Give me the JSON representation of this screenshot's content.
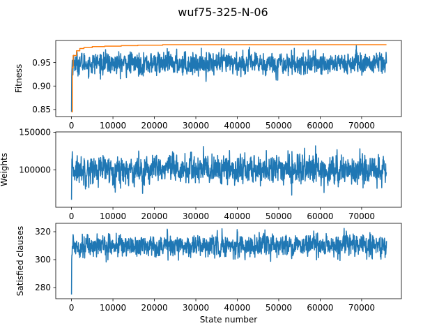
{
  "figure": {
    "title": "wuf75-325-N-06"
  },
  "chart_data": [
    {
      "type": "line",
      "ylabel": "Fitness",
      "xlabel": "",
      "xlim": [
        -3800,
        79600
      ],
      "ylim": [
        0.835,
        0.997
      ],
      "xticks": [
        0,
        10000,
        20000,
        30000,
        40000,
        50000,
        60000,
        70000
      ],
      "yticks": [
        0.85,
        0.9,
        0.95
      ],
      "ytick_labels": [
        "0.85",
        "0.90",
        "0.95"
      ],
      "noise": {
        "start": 0.845,
        "min": 0.887,
        "max": 0.99,
        "mean": 0.948,
        "std": 0.016,
        "n": 76000
      },
      "series": [
        {
          "color": "#1f77b4",
          "kind": "noisy"
        },
        {
          "color": "#ff7f0e",
          "kind": "step",
          "x": [
            0,
            200,
            400,
            1200,
            2000,
            3000,
            5000,
            8000,
            12000,
            16000,
            22000,
            76000
          ],
          "y": [
            0.845,
            0.94,
            0.965,
            0.975,
            0.98,
            0.982,
            0.984,
            0.985,
            0.986,
            0.987,
            0.988,
            0.988
          ]
        }
      ]
    },
    {
      "type": "line",
      "ylabel": "Weights",
      "xlabel": "",
      "xlim": [
        -3800,
        79600
      ],
      "ylim": [
        50000,
        150500
      ],
      "xticks": [
        0,
        10000,
        20000,
        30000,
        40000,
        50000,
        60000,
        70000
      ],
      "yticks": [
        100000,
        150000
      ],
      "ytick_labels": [
        "100000",
        "150000"
      ],
      "noise": {
        "start": 60000,
        "min": 57000,
        "max": 145000,
        "mean": 100000,
        "std": 13000,
        "n": 76000
      },
      "series": [
        {
          "color": "#1f77b4",
          "kind": "noisy"
        }
      ]
    },
    {
      "type": "line",
      "ylabel": "Satisfied clauses",
      "xlabel": "State number",
      "xlim": [
        -3800,
        79600
      ],
      "ylim": [
        272,
        326
      ],
      "xticks": [
        0,
        10000,
        20000,
        30000,
        40000,
        50000,
        60000,
        70000
      ],
      "yticks": [
        280,
        300,
        320
      ],
      "ytick_labels": [
        "280",
        "300",
        "320"
      ],
      "noise": {
        "start": 275,
        "min": 289,
        "max": 323,
        "mean": 310,
        "std": 5.2,
        "n": 76000
      },
      "series": [
        {
          "color": "#1f77b4",
          "kind": "noisy"
        }
      ]
    }
  ]
}
